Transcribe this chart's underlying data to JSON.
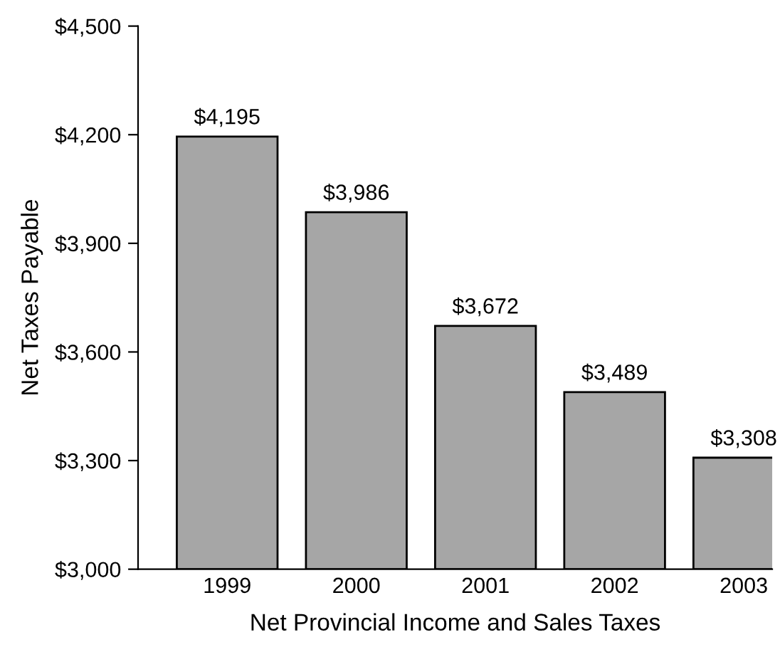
{
  "chart_data": {
    "type": "bar",
    "xlabel": "Net Provincial Income and Sales Taxes",
    "ylabel": "Net Taxes Payable",
    "categories": [
      "1999",
      "2000",
      "2001",
      "2002",
      "2003"
    ],
    "values": [
      4195,
      3986,
      3672,
      3489,
      3308
    ],
    "value_labels": [
      "$4,195",
      "$3,986",
      "$3,672",
      "$3,489",
      "$3,308"
    ],
    "color": "#a6a6a6",
    "ylim": [
      3000,
      4500
    ],
    "yticks": [
      {
        "value": 3000,
        "label": "$3,000"
      },
      {
        "value": 3300,
        "label": "$3,300"
      },
      {
        "value": 3600,
        "label": "$3,600"
      },
      {
        "value": 3900,
        "label": "$3,900"
      },
      {
        "value": 4200,
        "label": "$4,200"
      },
      {
        "value": 4500,
        "label": "$4,500"
      }
    ],
    "grid": false,
    "legend": false
  }
}
